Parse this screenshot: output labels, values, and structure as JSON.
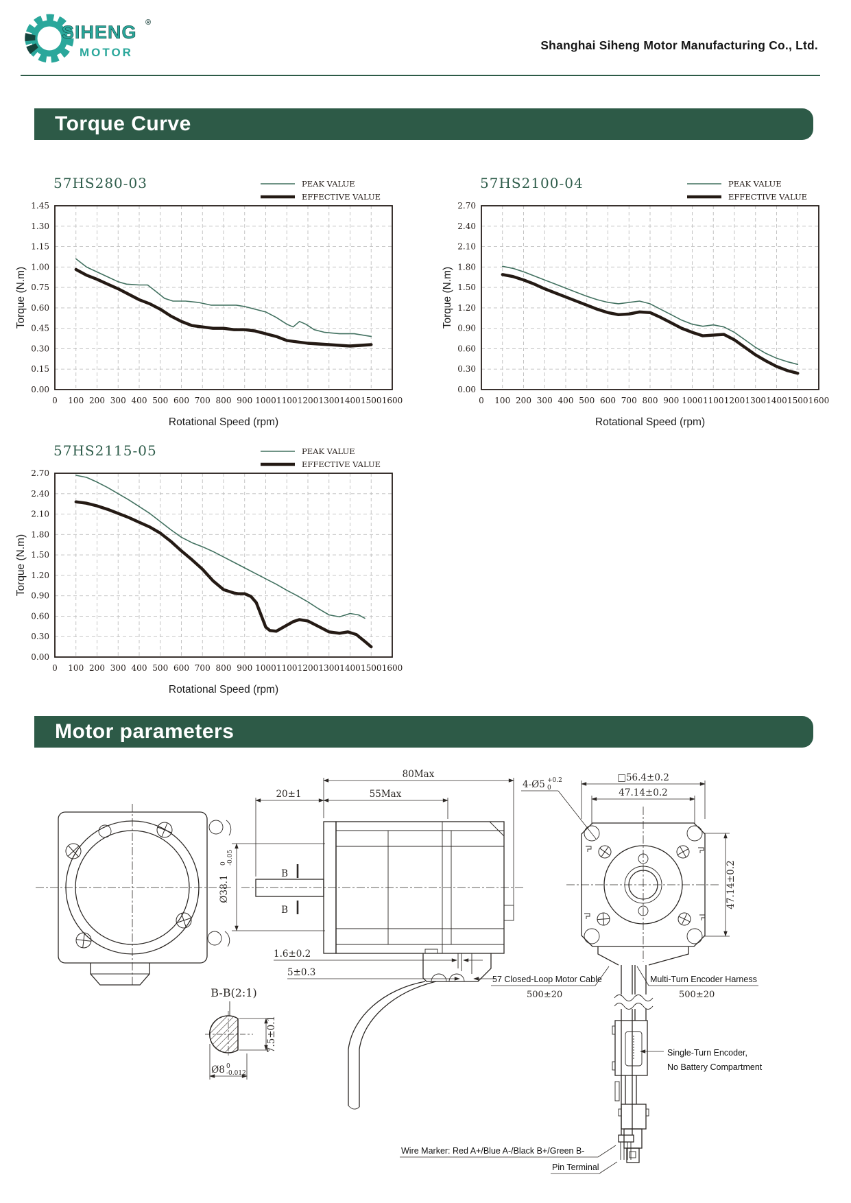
{
  "header": {
    "company": "Shanghai Siheng Motor Manufacturing Co., Ltd."
  },
  "logo": {
    "brand": "SIHENG",
    "sub": "MOTOR",
    "registered": "®"
  },
  "sections": {
    "torque_curve": "Torque Curve",
    "motor_parameters": "Motor parameters"
  },
  "legend": {
    "peak": "PEAK VALUE",
    "effective": "EFFECTIVE VALUE"
  },
  "chart_data": [
    {
      "type": "line",
      "title": "57HS280-03",
      "xlabel": "Rotational Speed (rpm)",
      "ylabel": "Torque (N.m)",
      "xlim": [
        0,
        1600
      ],
      "x_ticks": [
        0,
        100,
        200,
        300,
        400,
        500,
        600,
        700,
        800,
        900,
        1000,
        1100,
        1200,
        1300,
        1400,
        1500,
        1600
      ],
      "y_ticks": [
        "0.00",
        "0.15",
        "0.30",
        "0.45",
        "0.60",
        "0.75",
        "1.00",
        "1.15",
        "1.30",
        "1.45"
      ],
      "grid": true,
      "legend_position": "top-right",
      "series": [
        {
          "name": "PEAK VALUE",
          "color": "#41705f",
          "width": 1.6,
          "points": [
            [
              100,
              1.06
            ],
            [
              150,
              1.0
            ],
            [
              200,
              0.94
            ],
            [
              250,
              0.88
            ],
            [
              300,
              0.82
            ],
            [
              340,
              0.79
            ],
            [
              400,
              0.78
            ],
            [
              440,
              0.78
            ],
            [
              480,
              0.72
            ],
            [
              520,
              0.67
            ],
            [
              560,
              0.65
            ],
            [
              620,
              0.65
            ],
            [
              680,
              0.64
            ],
            [
              740,
              0.62
            ],
            [
              800,
              0.62
            ],
            [
              860,
              0.62
            ],
            [
              900,
              0.61
            ],
            [
              950,
              0.59
            ],
            [
              1000,
              0.57
            ],
            [
              1050,
              0.53
            ],
            [
              1100,
              0.48
            ],
            [
              1130,
              0.46
            ],
            [
              1160,
              0.5
            ],
            [
              1190,
              0.48
            ],
            [
              1230,
              0.44
            ],
            [
              1280,
              0.42
            ],
            [
              1350,
              0.41
            ],
            [
              1420,
              0.41
            ],
            [
              1500,
              0.39
            ]
          ]
        },
        {
          "name": "EFFECTIVE VALUE",
          "color": "#241a14",
          "width": 4.4,
          "points": [
            [
              100,
              0.97
            ],
            [
              150,
              0.9
            ],
            [
              200,
              0.85
            ],
            [
              250,
              0.79
            ],
            [
              300,
              0.74
            ],
            [
              350,
              0.7
            ],
            [
              400,
              0.66
            ],
            [
              450,
              0.63
            ],
            [
              500,
              0.59
            ],
            [
              550,
              0.54
            ],
            [
              600,
              0.5
            ],
            [
              650,
              0.47
            ],
            [
              700,
              0.46
            ],
            [
              750,
              0.45
            ],
            [
              800,
              0.45
            ],
            [
              850,
              0.44
            ],
            [
              900,
              0.44
            ],
            [
              950,
              0.43
            ],
            [
              1000,
              0.41
            ],
            [
              1050,
              0.39
            ],
            [
              1100,
              0.36
            ],
            [
              1150,
              0.35
            ],
            [
              1200,
              0.34
            ],
            [
              1300,
              0.33
            ],
            [
              1400,
              0.32
            ],
            [
              1500,
              0.33
            ]
          ]
        }
      ]
    },
    {
      "type": "line",
      "title": "57HS2100-04",
      "xlabel": "Rotational Speed (rpm)",
      "ylabel": "Torque (N.m)",
      "xlim": [
        0,
        1600
      ],
      "x_ticks": [
        0,
        100,
        200,
        300,
        400,
        500,
        600,
        700,
        800,
        900,
        1000,
        1100,
        1200,
        1300,
        1400,
        1500,
        1600
      ],
      "y_ticks": [
        "0.00",
        "0.30",
        "0.60",
        "0.90",
        "1.20",
        "1.50",
        "1.80",
        "2.10",
        "2.40",
        "2.70"
      ],
      "grid": true,
      "legend_position": "top-right",
      "series": [
        {
          "name": "PEAK VALUE",
          "color": "#41705f",
          "width": 1.6,
          "points": [
            [
              100,
              1.81
            ],
            [
              150,
              1.78
            ],
            [
              200,
              1.73
            ],
            [
              250,
              1.67
            ],
            [
              300,
              1.61
            ],
            [
              350,
              1.55
            ],
            [
              400,
              1.49
            ],
            [
              450,
              1.43
            ],
            [
              500,
              1.37
            ],
            [
              550,
              1.32
            ],
            [
              600,
              1.28
            ],
            [
              650,
              1.26
            ],
            [
              700,
              1.28
            ],
            [
              750,
              1.3
            ],
            [
              800,
              1.26
            ],
            [
              850,
              1.18
            ],
            [
              900,
              1.1
            ],
            [
              950,
              1.02
            ],
            [
              1000,
              0.96
            ],
            [
              1050,
              0.93
            ],
            [
              1100,
              0.95
            ],
            [
              1150,
              0.92
            ],
            [
              1200,
              0.84
            ],
            [
              1250,
              0.73
            ],
            [
              1300,
              0.62
            ],
            [
              1350,
              0.53
            ],
            [
              1400,
              0.46
            ],
            [
              1450,
              0.41
            ],
            [
              1500,
              0.37
            ]
          ]
        },
        {
          "name": "EFFECTIVE VALUE",
          "color": "#241a14",
          "width": 4.4,
          "points": [
            [
              100,
              1.69
            ],
            [
              150,
              1.66
            ],
            [
              200,
              1.61
            ],
            [
              250,
              1.55
            ],
            [
              300,
              1.48
            ],
            [
              350,
              1.42
            ],
            [
              400,
              1.36
            ],
            [
              450,
              1.3
            ],
            [
              500,
              1.24
            ],
            [
              550,
              1.18
            ],
            [
              600,
              1.13
            ],
            [
              650,
              1.1
            ],
            [
              700,
              1.11
            ],
            [
              750,
              1.14
            ],
            [
              800,
              1.13
            ],
            [
              850,
              1.06
            ],
            [
              900,
              0.98
            ],
            [
              950,
              0.9
            ],
            [
              1000,
              0.84
            ],
            [
              1050,
              0.79
            ],
            [
              1100,
              0.8
            ],
            [
              1150,
              0.81
            ],
            [
              1200,
              0.73
            ],
            [
              1250,
              0.62
            ],
            [
              1300,
              0.51
            ],
            [
              1350,
              0.42
            ],
            [
              1400,
              0.34
            ],
            [
              1450,
              0.28
            ],
            [
              1500,
              0.24
            ]
          ]
        }
      ]
    },
    {
      "type": "line",
      "title": "57HS2115-05",
      "xlabel": "Rotational Speed (rpm)",
      "ylabel": "Torque (N.m)",
      "xlim": [
        0,
        1600
      ],
      "x_ticks": [
        0,
        100,
        200,
        300,
        400,
        500,
        600,
        700,
        800,
        900,
        1000,
        1100,
        1200,
        1300,
        1400,
        1500,
        1600
      ],
      "y_ticks": [
        "0.00",
        "0.30",
        "0.60",
        "0.90",
        "1.20",
        "1.50",
        "1.80",
        "2.10",
        "2.40",
        "2.70"
      ],
      "grid": true,
      "legend_position": "top-right",
      "series": [
        {
          "name": "PEAK VALUE",
          "color": "#41705f",
          "width": 1.6,
          "points": [
            [
              100,
              2.67
            ],
            [
              150,
              2.64
            ],
            [
              200,
              2.57
            ],
            [
              250,
              2.49
            ],
            [
              300,
              2.4
            ],
            [
              350,
              2.31
            ],
            [
              400,
              2.21
            ],
            [
              450,
              2.11
            ],
            [
              500,
              1.99
            ],
            [
              550,
              1.87
            ],
            [
              600,
              1.76
            ],
            [
              650,
              1.68
            ],
            [
              700,
              1.62
            ],
            [
              750,
              1.55
            ],
            [
              800,
              1.47
            ],
            [
              850,
              1.39
            ],
            [
              900,
              1.31
            ],
            [
              950,
              1.23
            ],
            [
              1000,
              1.15
            ],
            [
              1050,
              1.07
            ],
            [
              1100,
              0.98
            ],
            [
              1150,
              0.9
            ],
            [
              1200,
              0.81
            ],
            [
              1250,
              0.71
            ],
            [
              1300,
              0.62
            ],
            [
              1350,
              0.59
            ],
            [
              1400,
              0.64
            ],
            [
              1440,
              0.62
            ],
            [
              1470,
              0.57
            ]
          ]
        },
        {
          "name": "EFFECTIVE VALUE",
          "color": "#241a14",
          "width": 4.4,
          "points": [
            [
              100,
              2.28
            ],
            [
              150,
              2.26
            ],
            [
              200,
              2.22
            ],
            [
              250,
              2.17
            ],
            [
              300,
              2.11
            ],
            [
              350,
              2.05
            ],
            [
              400,
              1.98
            ],
            [
              450,
              1.91
            ],
            [
              500,
              1.82
            ],
            [
              550,
              1.7
            ],
            [
              600,
              1.56
            ],
            [
              650,
              1.43
            ],
            [
              700,
              1.29
            ],
            [
              750,
              1.12
            ],
            [
              800,
              0.99
            ],
            [
              850,
              0.94
            ],
            [
              870,
              0.93
            ],
            [
              900,
              0.93
            ],
            [
              930,
              0.89
            ],
            [
              955,
              0.8
            ],
            [
              980,
              0.6
            ],
            [
              1000,
              0.44
            ],
            [
              1020,
              0.39
            ],
            [
              1050,
              0.38
            ],
            [
              1090,
              0.45
            ],
            [
              1130,
              0.52
            ],
            [
              1160,
              0.55
            ],
            [
              1200,
              0.53
            ],
            [
              1250,
              0.45
            ],
            [
              1300,
              0.37
            ],
            [
              1350,
              0.35
            ],
            [
              1390,
              0.37
            ],
            [
              1430,
              0.33
            ],
            [
              1470,
              0.23
            ],
            [
              1500,
              0.15
            ]
          ]
        }
      ]
    }
  ],
  "drawing": {
    "dim_80": "80Max",
    "dim_20": "20±1",
    "dim_55": "55Max",
    "shaft_dia": "Ø38.1",
    "shaft_dia_tol_hi": "0",
    "shaft_dia_tol_lo": "-0.05",
    "b_marker": "B",
    "dim_gap": "1.6±0.2",
    "dim_step": "5±0.3",
    "section_title": "B-B(2:1)",
    "dim_flat": "7.5±0.1",
    "shaft_d": "Ø8",
    "shaft_d_tol_hi": "0",
    "shaft_d_tol_lo": "-0.012",
    "holes": "4-Ø5",
    "holes_tol_hi": "+0.2",
    "holes_tol_lo": "0",
    "dim_square": "□56.4±0.2",
    "dim_pitch_h": "47.14±0.2",
    "dim_pitch_v": "47.14±0.2",
    "motor_cable": "57 Closed-Loop Motor Cable",
    "motor_cable_len": "500±20",
    "encoder_harness": "Multi-Turn Encoder Harness",
    "encoder_harness_len": "500±20",
    "encoder_note_1": "Single-Turn Encoder,",
    "encoder_note_2": "No Battery Compartment",
    "wire_marker": "Wire Marker: Red A+/Blue A-/Black B+/Green B-",
    "pin_terminal": "Pin Terminal"
  }
}
